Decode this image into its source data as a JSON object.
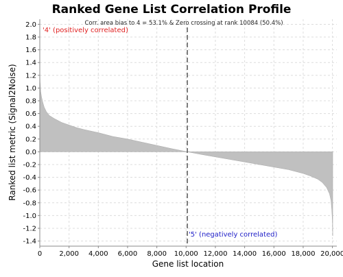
{
  "chart_data": {
    "type": "area",
    "title": "Ranked Gene List Correlation Profile",
    "subtitle": "Corr. area bias to 4 = 53.1% & Zero crossing at rank 10084 (50.4%)",
    "xlabel": "Gene list location",
    "ylabel": "Ranked list metric (Signal2Noise)",
    "xlim": [
      0,
      20300
    ],
    "ylim": [
      -1.48,
      2.08
    ],
    "x_ticks": [
      0,
      2000,
      4000,
      6000,
      8000,
      10000,
      12000,
      14000,
      16000,
      18000,
      20000
    ],
    "x_tick_labels": [
      "0",
      "2,000",
      "4,000",
      "6,000",
      "8,000",
      "10,000",
      "12,000",
      "14,000",
      "16,000",
      "18,000",
      "20,000"
    ],
    "y_ticks": [
      2.0,
      1.8,
      1.6,
      1.4,
      1.2,
      1.0,
      0.8,
      0.6,
      0.4,
      0.2,
      0.0,
      -0.2,
      -0.4,
      -0.6,
      -0.8,
      -1.0,
      -1.2,
      -1.4
    ],
    "y_tick_labels": [
      "2.0",
      "1.8",
      "1.6",
      "1.4",
      "1.2",
      "1.0",
      "0.8",
      "0.6",
      "0.4",
      "0.2",
      "0.0",
      "-0.2",
      "-0.4",
      "-0.6",
      "-0.8",
      "-1.0",
      "-1.2",
      "-1.4"
    ],
    "grid": true,
    "series": [
      {
        "x": [
          0,
          20,
          60,
          120,
          200,
          300,
          450,
          650,
          1000,
          1500,
          2000,
          2500,
          3000,
          4000,
          5000,
          6000,
          7000,
          8000,
          9000,
          10084,
          11000,
          12000,
          13000,
          14000,
          15000,
          16000,
          17000,
          18000,
          18500,
          19000,
          19300,
          19600,
          19800,
          19900,
          19960,
          20000,
          20020
        ],
        "values": [
          1.35,
          1.1,
          0.95,
          0.86,
          0.78,
          0.7,
          0.63,
          0.57,
          0.52,
          0.46,
          0.42,
          0.38,
          0.35,
          0.3,
          0.24,
          0.2,
          0.15,
          0.1,
          0.05,
          0.0,
          -0.04,
          -0.08,
          -0.12,
          -0.16,
          -0.2,
          -0.24,
          -0.28,
          -0.34,
          -0.38,
          -0.43,
          -0.48,
          -0.56,
          -0.66,
          -0.76,
          -0.92,
          -1.1,
          -1.32
        ]
      }
    ],
    "fill_color": "#c0c0c0",
    "zero_crossing_rank": 10084,
    "annotations": [
      {
        "text": "'4' (positively correlated)",
        "color": "#e02020"
      },
      {
        "text": "'5' (negatively correlated)",
        "color": "#2020c8"
      }
    ]
  }
}
